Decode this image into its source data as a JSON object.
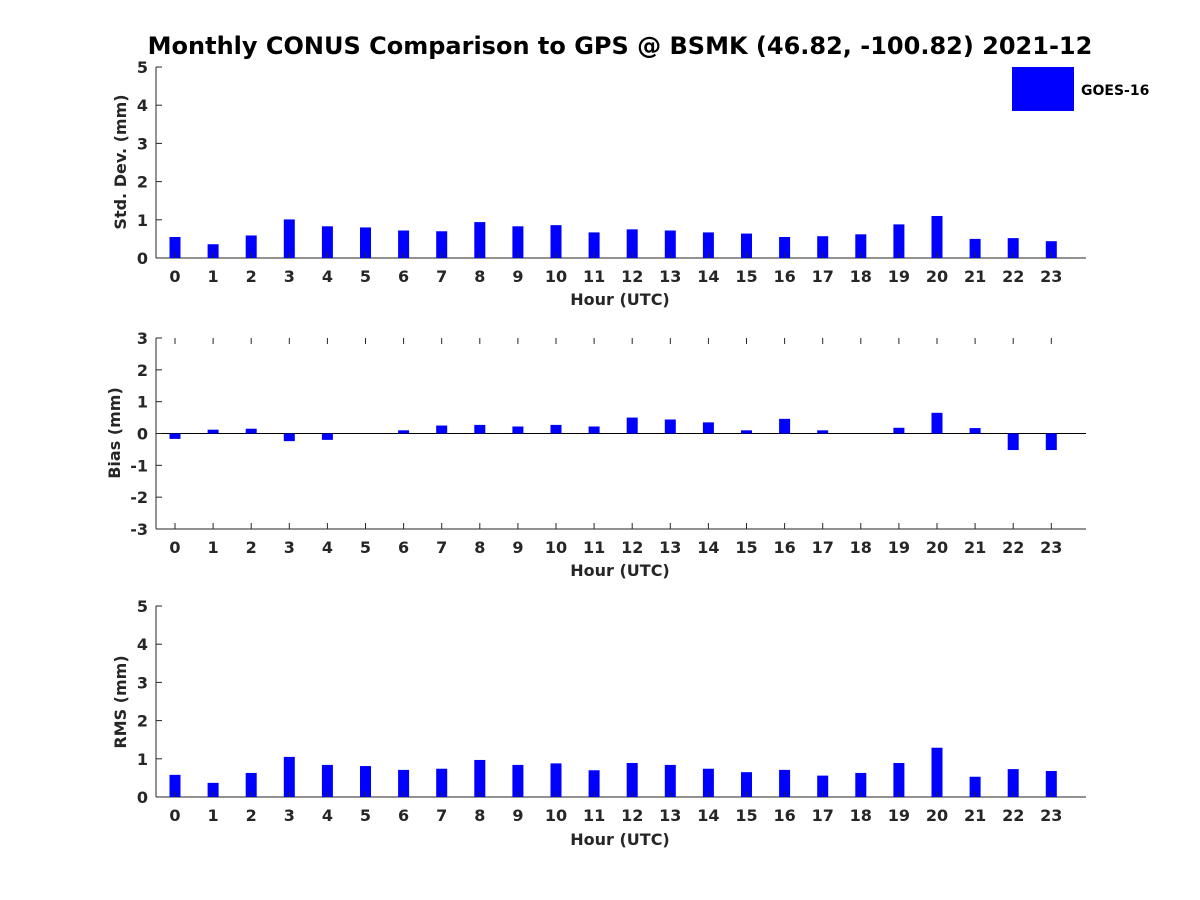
{
  "figure": {
    "title": "Monthly CONUS Comparison to GPS @ BSMK (46.82, -100.82) 2021-12",
    "legend_label": "GOES-16",
    "legend_position": "top-right"
  },
  "colors": {
    "bar": "#0000ff",
    "axis": "#262626",
    "zero_line": "#000000",
    "text": "#262626"
  },
  "chart_data": [
    {
      "type": "bar",
      "series_name": "GOES-16",
      "categories": [
        "0",
        "1",
        "2",
        "3",
        "4",
        "5",
        "6",
        "7",
        "8",
        "9",
        "10",
        "11",
        "12",
        "13",
        "14",
        "15",
        "16",
        "17",
        "18",
        "19",
        "20",
        "21",
        "22",
        "23"
      ],
      "values": [
        0.55,
        0.36,
        0.59,
        1.01,
        0.83,
        0.8,
        0.72,
        0.7,
        0.94,
        0.83,
        0.86,
        0.67,
        0.75,
        0.72,
        0.67,
        0.64,
        0.55,
        0.57,
        0.62,
        0.88,
        1.1,
        0.5,
        0.52,
        0.44
      ],
      "title": "Monthly CONUS Comparison to GPS @ BSMK (46.82, -100.82) 2021-12",
      "xlabel": "Hour (UTC)",
      "ylabel": "Std. Dev. (mm)",
      "ylim": [
        0,
        5
      ],
      "yticks": [
        "0",
        "1",
        "2",
        "3",
        "4",
        "5"
      ],
      "grid": false,
      "legend": "top-right"
    },
    {
      "type": "bar",
      "series_name": "GOES-16",
      "categories": [
        "0",
        "1",
        "2",
        "3",
        "4",
        "5",
        "6",
        "7",
        "8",
        "9",
        "10",
        "11",
        "12",
        "13",
        "14",
        "15",
        "16",
        "17",
        "18",
        "19",
        "20",
        "21",
        "22",
        "23"
      ],
      "values": [
        -0.17,
        0.12,
        0.15,
        -0.24,
        -0.2,
        0.0,
        0.1,
        0.25,
        0.27,
        0.22,
        0.27,
        0.22,
        0.5,
        0.44,
        0.35,
        0.1,
        0.46,
        0.1,
        0.0,
        0.18,
        0.65,
        0.17,
        -0.52,
        -0.52
      ],
      "xlabel": "Hour (UTC)",
      "ylabel": "Bias (mm)",
      "ylim": [
        -3,
        3
      ],
      "yticks": [
        "-3",
        "-2",
        "-1",
        "0",
        "1",
        "2",
        "3"
      ],
      "grid": false
    },
    {
      "type": "bar",
      "series_name": "GOES-16",
      "categories": [
        "0",
        "1",
        "2",
        "3",
        "4",
        "5",
        "6",
        "7",
        "8",
        "9",
        "10",
        "11",
        "12",
        "13",
        "14",
        "15",
        "16",
        "17",
        "18",
        "19",
        "20",
        "21",
        "22",
        "23"
      ],
      "values": [
        0.58,
        0.37,
        0.63,
        1.05,
        0.84,
        0.81,
        0.71,
        0.74,
        0.97,
        0.84,
        0.88,
        0.7,
        0.89,
        0.84,
        0.74,
        0.65,
        0.71,
        0.56,
        0.63,
        0.89,
        1.29,
        0.53,
        0.73,
        0.68
      ],
      "xlabel": "Hour (UTC)",
      "ylabel": "RMS (mm)",
      "ylim": [
        0,
        5
      ],
      "yticks": [
        "0",
        "1",
        "2",
        "3",
        "4",
        "5"
      ],
      "grid": false
    }
  ]
}
